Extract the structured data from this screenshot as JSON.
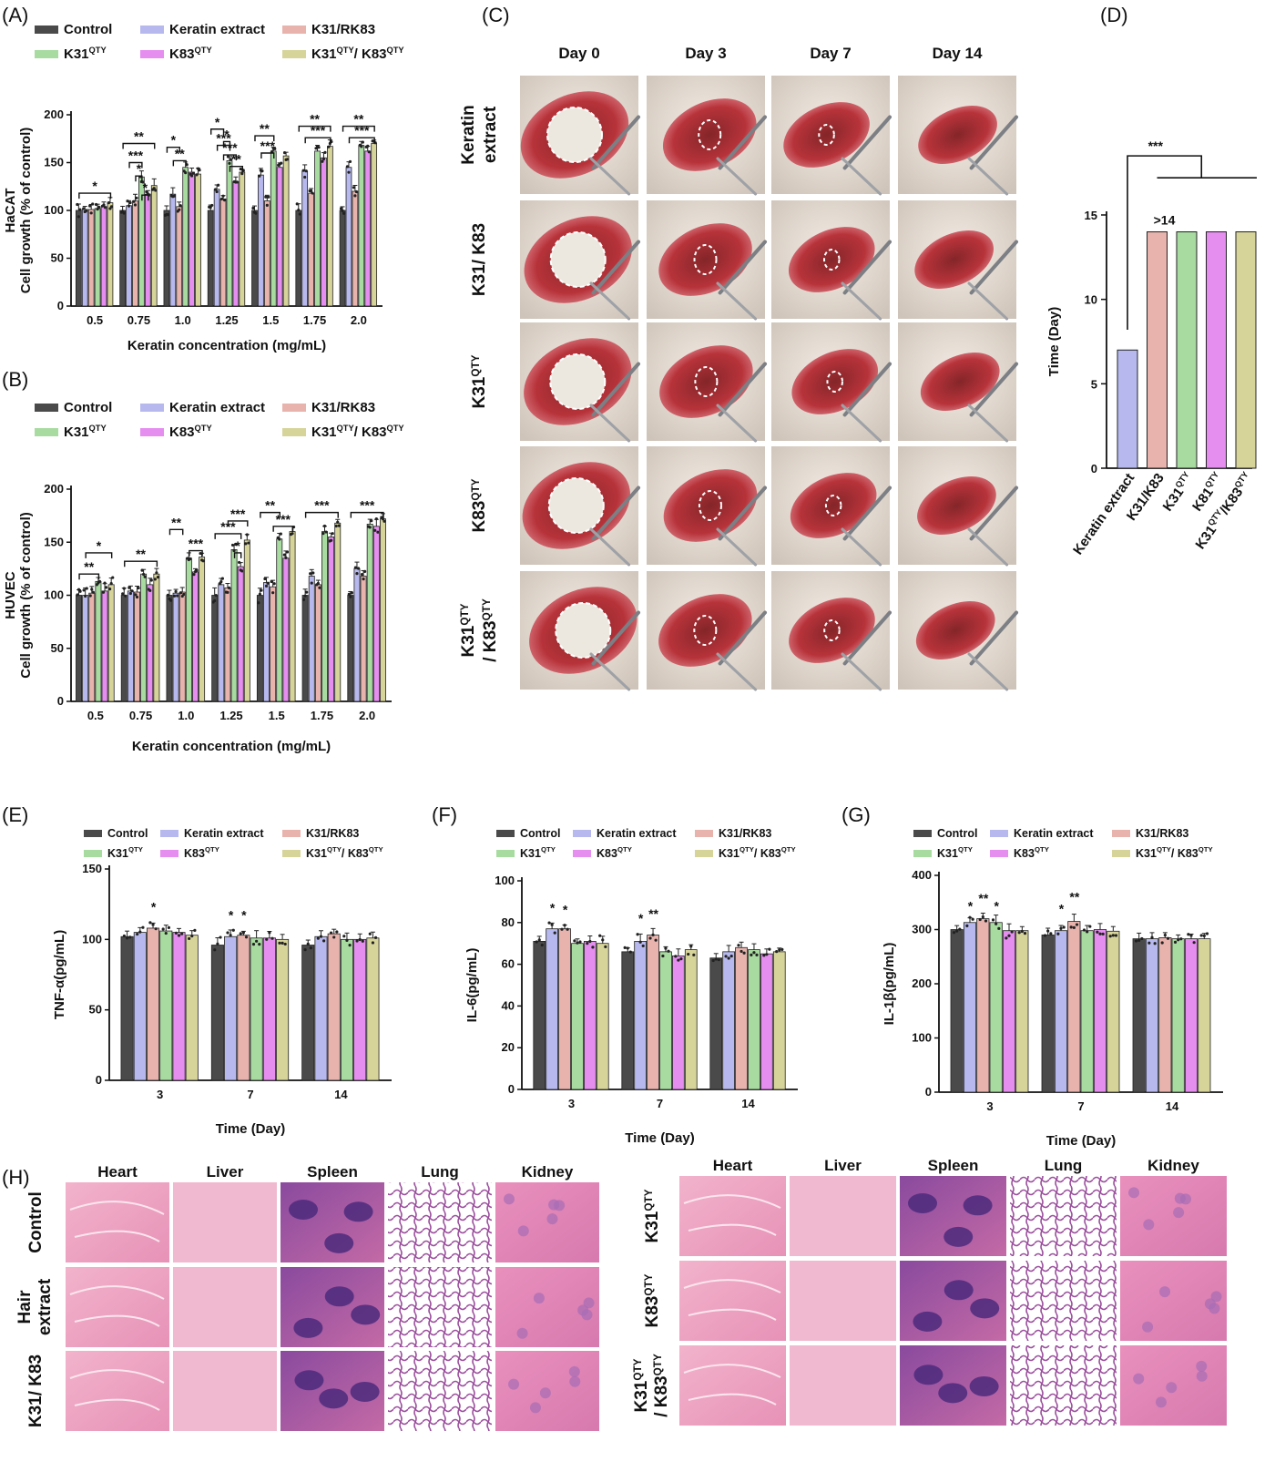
{
  "colors": {
    "control": "#4a4a4a",
    "keratin_extract": "#b7b9ee",
    "k31_rk83": "#e8b3ad",
    "k31qty": "#a8dba0",
    "k83qty": "#e58ef0",
    "k31qty_k83qty": "#d7d49a"
  },
  "panel_labels": {
    "A": "(A)",
    "B": "(B)",
    "C": "(C)",
    "D": "(D)",
    "E": "(E)",
    "F": "(F)",
    "G": "(G)",
    "H": "(H)"
  },
  "legend": [
    {
      "label": "Control",
      "sup": ""
    },
    {
      "label": "Keratin extract",
      "sup": ""
    },
    {
      "label": "K31/RK83",
      "sup": ""
    },
    {
      "label": "K31",
      "sup": "QTY"
    },
    {
      "label": "K83",
      "sup": "QTY"
    },
    {
      "label": "K31",
      "sup": "QTY",
      "label2": "/ K83",
      "sup2": "QTY"
    }
  ],
  "photo_panel_C": {
    "columns": [
      "Day 0",
      "Day 3",
      "Day 7",
      "Day 14"
    ],
    "rows": [
      {
        "label": "Keratin",
        "label2": "extract"
      },
      {
        "label": "K31/ K83"
      },
      {
        "label": "K31",
        "sup": "QTY"
      },
      {
        "label": "K83",
        "sup": "QTY"
      },
      {
        "label": "K31",
        "sup": "QTY",
        "label2": "/ K83",
        "sup2": "QTY"
      }
    ]
  },
  "histology_panel_H": {
    "columns": [
      "Heart",
      "Liver",
      "Spleen",
      "Lung",
      "Kidney"
    ],
    "left_rows": [
      {
        "label": "Control"
      },
      {
        "label": "Hair",
        "label2": "extract"
      },
      {
        "label": "K31/ K83"
      }
    ],
    "right_rows": [
      {
        "label": "K31",
        "sup": "QTY"
      },
      {
        "label": "K83",
        "sup": "QTY"
      },
      {
        "label": "K31",
        "sup": "QTY",
        "label2": "/ K83",
        "sup2": "QTY"
      }
    ]
  },
  "chart_data": [
    {
      "panel": "A",
      "type": "bar",
      "xlabel": "Keratin concentration (mg/mL)",
      "ylabel": "HaCAT",
      "ylabel2": "Cell growth (% of control)",
      "ylim": [
        0,
        200
      ],
      "yticks": [
        0,
        50,
        100,
        150,
        200
      ],
      "categories": [
        "0.5",
        "0.75",
        "1.0",
        "1.25",
        "1.5",
        "1.75",
        "2.0"
      ],
      "series": [
        {
          "name": "Control",
          "values": [
            100,
            100,
            100,
            100,
            100,
            100,
            100
          ]
        },
        {
          "name": "Keratin extract",
          "values": [
            101,
            105,
            117,
            122,
            137,
            141,
            145
          ]
        },
        {
          "name": "K31/RK83",
          "values": [
            101,
            110,
            104,
            112,
            110,
            118,
            120
          ]
        },
        {
          "name": "K31QTY",
          "values": [
            102,
            135,
            145,
            152,
            162,
            162,
            168
          ]
        },
        {
          "name": "K83QTY",
          "values": [
            104,
            117,
            140,
            130,
            145,
            155,
            162
          ]
        },
        {
          "name": "K31QTY/ K83QTY",
          "values": [
            108,
            126,
            138,
            140,
            157,
            167,
            170
          ]
        }
      ],
      "annotations": [
        "*",
        "**",
        "***",
        "*",
        "*",
        "*",
        "**",
        "*",
        "***",
        "*",
        "***",
        "**",
        "**",
        "***",
        "**",
        "***",
        "**",
        "***"
      ]
    },
    {
      "panel": "B",
      "type": "bar",
      "xlabel": "Keratin concentration (mg/mL)",
      "ylabel": "HUVEC",
      "ylabel2": "Cell growth (% of control)",
      "ylim": [
        0,
        200
      ],
      "yticks": [
        0,
        50,
        100,
        150,
        200
      ],
      "categories": [
        "0.5",
        "0.75",
        "1.0",
        "1.25",
        "1.5",
        "1.75",
        "2.0"
      ],
      "series": [
        {
          "name": "Control",
          "values": [
            100,
            100,
            100,
            100,
            100,
            100,
            100
          ]
        },
        {
          "name": "Keratin extract",
          "values": [
            100,
            104,
            102,
            110,
            112,
            118,
            125
          ]
        },
        {
          "name": "K31/RK83",
          "values": [
            102,
            103,
            103,
            107,
            108,
            110,
            118
          ]
        },
        {
          "name": "K31QTY",
          "values": [
            113,
            120,
            135,
            143,
            153,
            160,
            167
          ]
        },
        {
          "name": "K83QTY",
          "values": [
            104,
            110,
            122,
            127,
            135,
            155,
            165
          ]
        },
        {
          "name": "K31QTY/ K83QTY",
          "values": [
            110,
            120,
            136,
            152,
            160,
            168,
            172
          ]
        }
      ],
      "annotations": [
        "**",
        "*",
        "**",
        "**",
        "***",
        "***",
        "***",
        "*",
        "**",
        "***",
        "***",
        "***"
      ]
    },
    {
      "panel": "D",
      "type": "bar",
      "ylabel": "Time (Day)",
      "ylim": [
        0,
        15
      ],
      "yticks": [
        0,
        5,
        10,
        15
      ],
      "categories": [
        "Keratin extract",
        "K31/K83",
        "K31QTY",
        "K81QTY",
        "K31QTY/K83QTY"
      ],
      "category_labels": [
        {
          "label": "Keratin extract",
          "sup": ""
        },
        {
          "label": "K31/K83",
          "sup": ""
        },
        {
          "label": "K31",
          "sup": "QTY"
        },
        {
          "label": "K81",
          "sup": "QTY"
        },
        {
          "label": "K31",
          "sup": "QTY",
          "label2": "/K83",
          "sup2": "QTY"
        }
      ],
      "values": [
        7,
        14,
        14,
        14,
        14
      ],
      "annotations": [
        ">14",
        "***"
      ]
    },
    {
      "panel": "E",
      "type": "bar",
      "xlabel": "Time (Day)",
      "ylabel": "TNF-α(pg/mL)",
      "ylim": [
        0,
        150
      ],
      "yticks": [
        0,
        50,
        100,
        150
      ],
      "categories": [
        "3",
        "7",
        "14"
      ],
      "series": [
        {
          "name": "Control",
          "values": [
            102,
            96,
            96
          ]
        },
        {
          "name": "Keratin extract",
          "values": [
            105,
            102,
            102
          ]
        },
        {
          "name": "K31/RK83",
          "values": [
            108,
            103,
            104
          ]
        },
        {
          "name": "K31QTY",
          "values": [
            106,
            101,
            100
          ]
        },
        {
          "name": "K83QTY",
          "values": [
            105,
            101,
            100
          ]
        },
        {
          "name": "K31QTY/ K83QTY",
          "values": [
            103,
            100,
            101
          ]
        }
      ],
      "annotations": [
        "*",
        "*",
        "*"
      ]
    },
    {
      "panel": "F",
      "type": "bar",
      "xlabel": "Time (Day)",
      "ylabel": "IL-6(pg/mL)",
      "ylim": [
        0,
        100
      ],
      "yticks": [
        0,
        20,
        40,
        60,
        80,
        100
      ],
      "categories": [
        "3",
        "7",
        "14"
      ],
      "series": [
        {
          "name": "Control",
          "values": [
            71,
            66,
            63
          ]
        },
        {
          "name": "Keratin extract",
          "values": [
            77,
            71,
            66
          ]
        },
        {
          "name": "K31/RK83",
          "values": [
            77,
            74,
            68
          ]
        },
        {
          "name": "K31QTY",
          "values": [
            70,
            66,
            67
          ]
        },
        {
          "name": "K83QTY",
          "values": [
            71,
            64,
            65
          ]
        },
        {
          "name": "K31QTY/ K83QTY",
          "values": [
            70,
            67,
            66
          ]
        }
      ],
      "annotations": [
        "*",
        "*",
        "*",
        "**"
      ]
    },
    {
      "panel": "G",
      "type": "bar",
      "xlabel": "Time (Day)",
      "ylabel": "IL-1β(pg/mL)",
      "ylim": [
        0,
        400
      ],
      "yticks": [
        0,
        100,
        200,
        300,
        400
      ],
      "categories": [
        "3",
        "7",
        "14"
      ],
      "series": [
        {
          "name": "Control",
          "values": [
            300,
            290,
            283
          ]
        },
        {
          "name": "Keratin extract",
          "values": [
            313,
            298,
            283
          ]
        },
        {
          "name": "K31/RK83",
          "values": [
            320,
            315,
            285
          ]
        },
        {
          "name": "K31QTY",
          "values": [
            313,
            298,
            283
          ]
        },
        {
          "name": "K83QTY",
          "values": [
            298,
            300,
            283
          ]
        },
        {
          "name": "K31QTY/ K83QTY",
          "values": [
            298,
            297,
            283
          ]
        }
      ],
      "annotations": [
        "*",
        "**",
        "*",
        "*",
        "**"
      ]
    }
  ]
}
